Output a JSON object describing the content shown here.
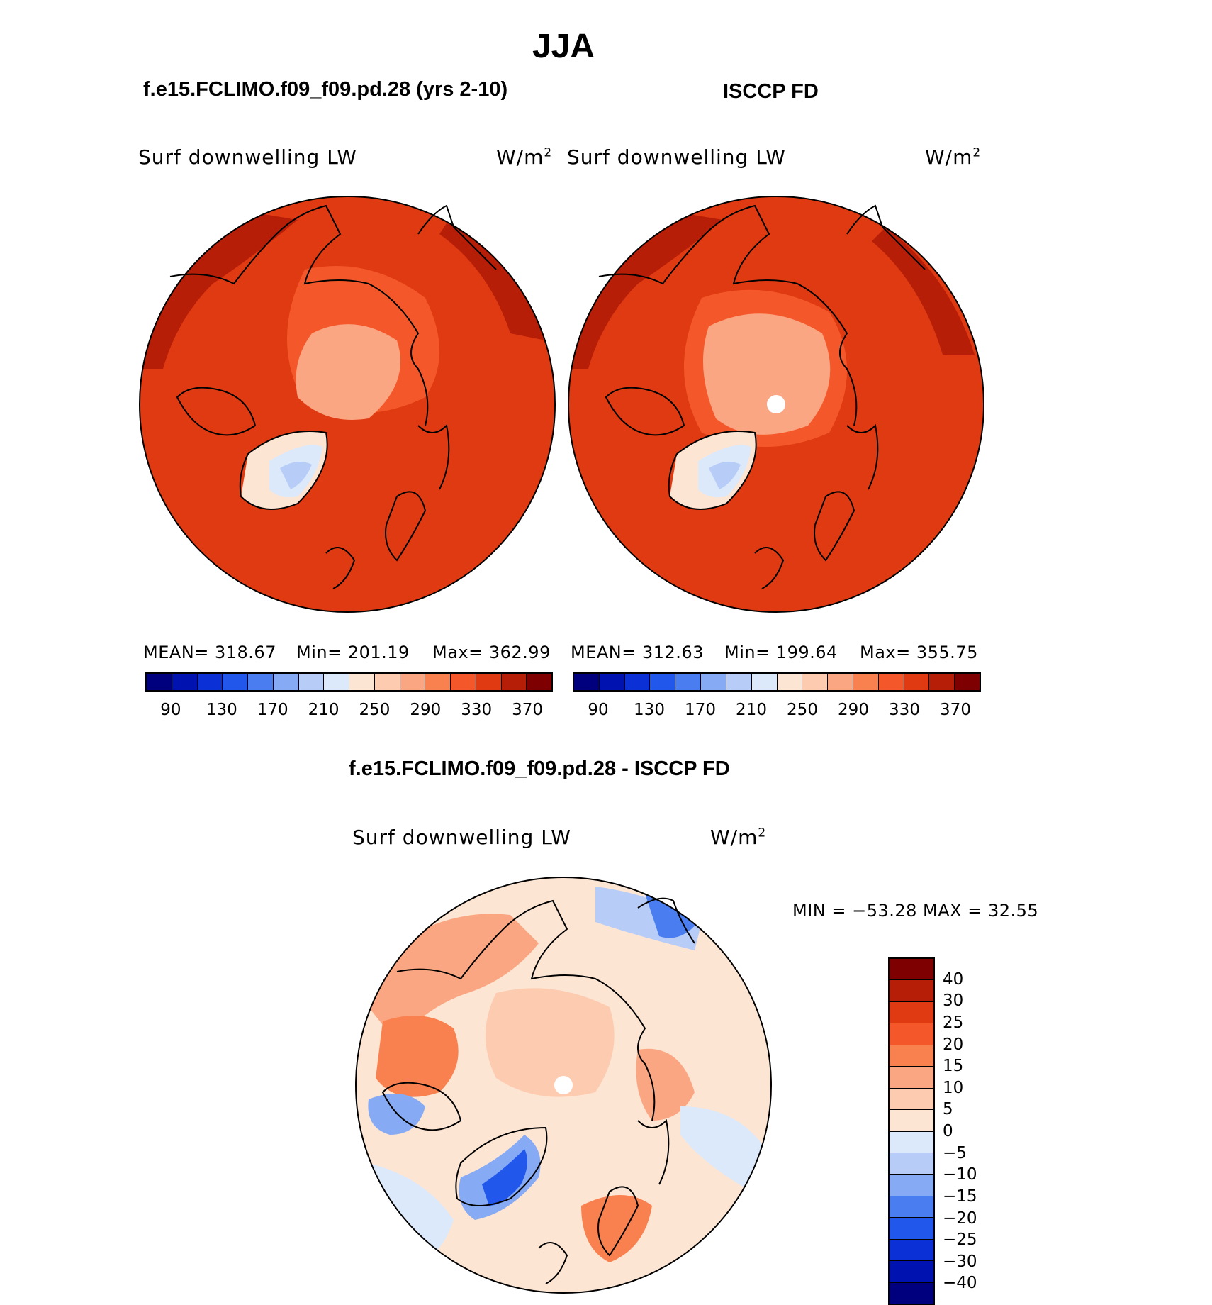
{
  "title": "JJA",
  "panels": [
    {
      "header": "f.e15.FCLIMO.f09_f09.pd.28 (yrs 2-10)",
      "variable": "Surf downwelling LW",
      "units_base": "W/m",
      "units_exp": "2",
      "stats": {
        "mean": "MEAN=  318.67",
        "min": "Min=  201.19",
        "max": "Max=  362.99"
      },
      "colorbar_labels": [
        "90",
        "130",
        "170",
        "210",
        "250",
        "290",
        "330",
        "370"
      ]
    },
    {
      "header": "ISCCP FD",
      "variable": "Surf downwelling LW",
      "units_base": "W/m",
      "units_exp": "2",
      "stats": {
        "mean": "MEAN=  312.63",
        "min": "Min=  199.64",
        "max": "Max=  355.75"
      },
      "colorbar_labels": [
        "90",
        "130",
        "170",
        "210",
        "250",
        "290",
        "330",
        "370"
      ]
    }
  ],
  "diff": {
    "header": "f.e15.FCLIMO.f09_f09.pd.28 - ISCCP FD",
    "variable": "Surf downwelling LW",
    "units_base": "W/m",
    "units_exp": "2",
    "minmax": "MIN  =  −53.28  MAX  =    32.55",
    "colorbar_labels": [
      "40",
      "30",
      "25",
      "20",
      "15",
      "10",
      "5",
      "0",
      "−5",
      "−10",
      "−15",
      "−20",
      "−25",
      "−30",
      "−40"
    ]
  },
  "colors": {
    "abs_palette": [
      "#00007f",
      "#0012b0",
      "#0a30d6",
      "#2157ea",
      "#4a7ef0",
      "#86aaf4",
      "#b7cdf8",
      "#dce9fb",
      "#fde5d3",
      "#fccbb0",
      "#fba682",
      "#f9804f",
      "#f4582a",
      "#e03a12",
      "#b61e08",
      "#7f0000"
    ],
    "diff_palette": [
      "#7f0000",
      "#b61e08",
      "#e03a12",
      "#f4582a",
      "#f9804f",
      "#fba682",
      "#fccbb0",
      "#fde5d3",
      "#dce9fb",
      "#b7cdf8",
      "#86aaf4",
      "#4a7ef0",
      "#2157ea",
      "#0a30d6",
      "#0012b0",
      "#00007f"
    ]
  },
  "chart_data": [
    {
      "type": "heatmap",
      "projection": "polar-stereographic",
      "title": "f.e15.FCLIMO.f09_f09.pd.28 (yrs 2-10)",
      "variable": "Surf downwelling LW",
      "units": "W/m2",
      "mean": 318.67,
      "min": 201.19,
      "max": 362.99,
      "contour_levels": [
        90,
        110,
        130,
        150,
        170,
        190,
        210,
        230,
        250,
        270,
        290,
        310,
        330,
        350,
        370
      ]
    },
    {
      "type": "heatmap",
      "projection": "polar-stereographic",
      "title": "ISCCP FD",
      "variable": "Surf downwelling LW",
      "units": "W/m2",
      "mean": 312.63,
      "min": 199.64,
      "max": 355.75,
      "contour_levels": [
        90,
        110,
        130,
        150,
        170,
        190,
        210,
        230,
        250,
        270,
        290,
        310,
        330,
        350,
        370
      ]
    },
    {
      "type": "heatmap",
      "projection": "polar-stereographic",
      "title": "f.e15.FCLIMO.f09_f09.pd.28 - ISCCP FD",
      "variable": "Surf downwelling LW",
      "units": "W/m2",
      "min": -53.28,
      "max": 32.55,
      "contour_levels": [
        -40,
        -30,
        -25,
        -20,
        -15,
        -10,
        -5,
        0,
        5,
        10,
        15,
        20,
        25,
        30,
        40
      ]
    }
  ]
}
